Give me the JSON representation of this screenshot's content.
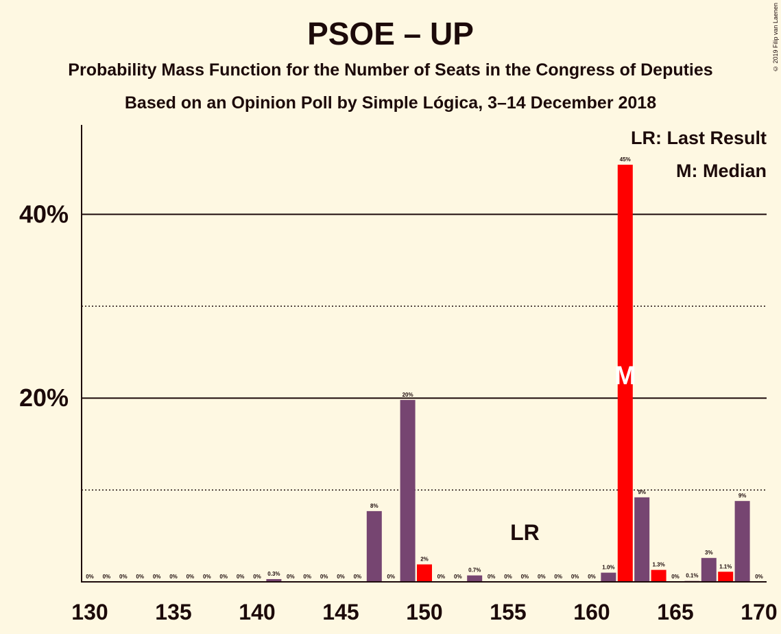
{
  "title": "PSOE – UP",
  "subtitle1": "Probability Mass Function for the Number of Seats in the Congress of Deputies",
  "subtitle2": "Based on an Opinion Poll by Simple Lógica, 3–14 December 2018",
  "copyright": "© 2019 Filip van Laenen",
  "legend": {
    "last_result": "LR: Last Result",
    "median": "M: Median"
  },
  "colors": {
    "background": "#fef8e2",
    "bar_purple": "#764571",
    "bar_red": "#ff0000",
    "text": "#1c0a0a"
  },
  "chart_data": {
    "type": "bar",
    "x": [
      130,
      131,
      132,
      133,
      134,
      135,
      136,
      137,
      138,
      139,
      140,
      141,
      142,
      143,
      144,
      145,
      146,
      147,
      148,
      149,
      150,
      151,
      152,
      153,
      154,
      155,
      156,
      157,
      158,
      159,
      160,
      161,
      162,
      163,
      164,
      165,
      166,
      167,
      168,
      169,
      170
    ],
    "values": [
      0,
      0,
      0,
      0,
      0,
      0,
      0,
      0,
      0,
      0,
      0,
      0.3,
      0,
      0,
      0,
      0,
      0,
      7.7,
      0,
      19.8,
      1.9,
      0,
      0,
      0.7,
      0,
      0,
      0,
      0,
      0,
      0,
      0,
      1.0,
      45.4,
      9.2,
      1.3,
      0,
      0.1,
      2.6,
      1.1,
      8.8,
      0
    ],
    "labels": [
      "0%",
      "0%",
      "0%",
      "0%",
      "0%",
      "0%",
      "0%",
      "0%",
      "0%",
      "0%",
      "0%",
      "0.3%",
      "0%",
      "0%",
      "0%",
      "0%",
      "0%",
      "8%",
      "0%",
      "20%",
      "2%",
      "0%",
      "0%",
      "0.7%",
      "0%",
      "0%",
      "0%",
      "0%",
      "0%",
      "0%",
      "0%",
      "1.0%",
      "45%",
      "9%",
      "1.3%",
      "0%",
      "0.1%",
      "3%",
      "1.1%",
      "9%",
      "0%"
    ],
    "red_bars": [
      150,
      162,
      164,
      168
    ],
    "x_ticks": [
      130,
      135,
      140,
      145,
      150,
      155,
      160,
      165,
      170
    ],
    "y_ticks_labeled": [
      20,
      40
    ],
    "y_ticks_labels": [
      "20%",
      "40%"
    ],
    "y_gridlines_solid": [
      20,
      40
    ],
    "y_gridlines_dotted": [
      10,
      30
    ],
    "ylim": [
      0,
      49.5
    ],
    "last_result_seat": 156,
    "last_result_label": "LR",
    "median_seat": 162,
    "median_label": "M"
  }
}
